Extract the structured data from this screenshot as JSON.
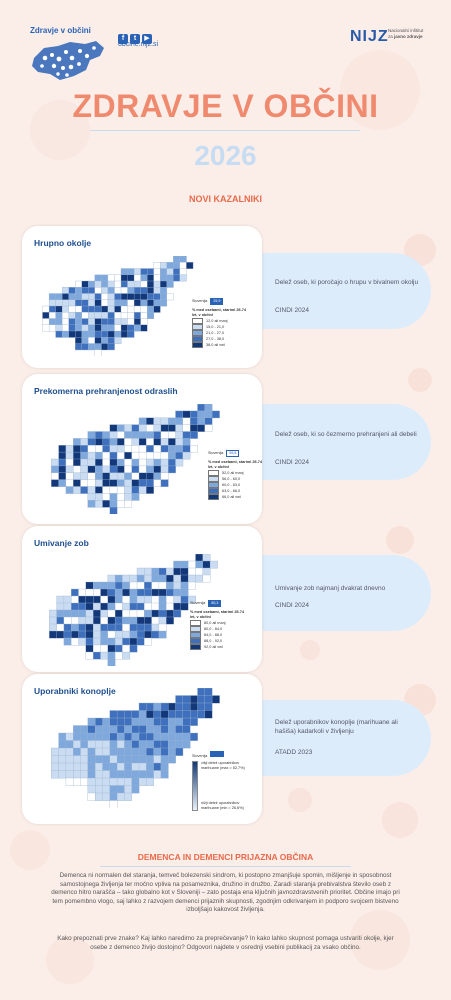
{
  "header": {
    "brand_title": "Zdravje v občini",
    "website": "obcine.nijz.si",
    "social_icons": [
      "facebook-icon",
      "twitter-icon",
      "youtube-icon"
    ],
    "nijz_logo": "NIJZ",
    "nijz_name_line1": "Nacionalni inštitut",
    "nijz_name_line2_prefix": "za ",
    "nijz_name_line2_emph": "javno zdravje"
  },
  "title": "ZDRAVJE V OBČINI",
  "year": "2026",
  "section_label": "NOVI KAZALNIKI",
  "indicators": [
    {
      "title": "Hrupno okolje",
      "description": "Delež oseb, ki poročajo o hrupu v bivalnem okolju",
      "source": "CINDI 2024",
      "legend_label": "Slovenija",
      "legend_value": "25,9",
      "legend_title": "% med osebami, starimi 25-74 let, v občini",
      "legend_items": [
        "12,0 ali manj",
        "15,0 - 21,0",
        "21,0 - 27,0",
        "27,0 - 38,0",
        "38,0 ali več"
      ]
    },
    {
      "title": "Prekomerna prehranjenost odraslih",
      "description": "Delež oseb, ki so čezmerno prehranjeni ali debeli",
      "source": "CINDI 2024",
      "legend_label": "Slovenija",
      "legend_value": "59,8",
      "legend_title": "% med osebami, starimi 25-74 let, v občini",
      "legend_items": [
        "52,0 ali manj",
        "56,0 - 60,0",
        "60,0 - 63,0",
        "63,0 - 66,0",
        "66,0 ali več"
      ]
    },
    {
      "title": "Umivanje zob",
      "description": "Umivanje zob najmanj dvakrat dnevno",
      "source": "CINDI 2024",
      "legend_label": "Slovenija",
      "legend_value": "80,3",
      "legend_title": "% med osebami, starimi 25-74 let, v občini",
      "legend_items": [
        "80,0 ali manj",
        "80,0 - 84,0",
        "84,0 - 88,0",
        "88,0 - 92,0",
        "92,0 ali več"
      ]
    },
    {
      "title": "Uporabniki konoplje",
      "description": "Delež uporabnikov konoplje (marihuane ali hašiša) kadarkoli v življenju",
      "source": "ATADD 2023",
      "legend_label": "Slovenija",
      "legend_value": "",
      "legend_title": "",
      "legend_items": [
        "višji delež uporabnikov marihuane (max = 52,7%)",
        "nižji delež uporabnikov marihuane (min = 26,6%)"
      ]
    }
  ],
  "dementia": {
    "title": "DEMENCA IN DEMENCI PRIJAZNA OBČINA",
    "paragraph1": "Demenca ni normalen del staranja, temveč bolezenski sindrom, ki postopno zmanjšuje spomin, mišljenje in sposobnost samostojnega življenja ter močno vpliva na posameznika, družino in družbo. Zaradi staranja prebivalstva število oseb z demenco hitro narašča – tako globalno kot v Sloveniji – zato postaja ena ključnih javnozdravstvenih prioritet. Občine imajo pri tem pomembno vlogo, saj lahko z razvojem demenci prijaznih skupnosti, zgodnjim odkrivanjem in podporo svojcem bistveno izboljšajo kakovost življenja.",
    "paragraph2": "Kako prepoznati prve znake? Kaj lahko naredimo za preprečevanje? In kako lahko skupnost pomaga ustvariti okolje, kjer osebe z demenco živijo dostojno? Odgovori najdete v osrednji vsebini publikacij za vsako občino."
  },
  "colors": {
    "title": "#f08a6e",
    "accent": "#e86a4a",
    "blue_dark": "#0f3a7a",
    "blue": "#2a62b5",
    "pill": "#dcecfb",
    "background": "#fbeee9"
  }
}
